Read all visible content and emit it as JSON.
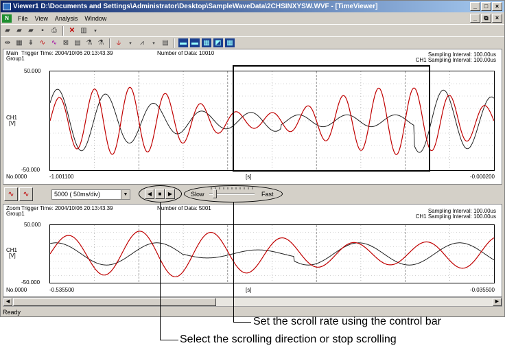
{
  "window": {
    "title": "Viewer1 D:\\Documents and Settings\\Administrator\\Desktop\\SampleWaveData\\2CHSINXYSW.WVF - [TimeViewer]",
    "minimize": "_",
    "maximize": "□",
    "close": "×",
    "restore": "⧉"
  },
  "menu": [
    "File",
    "View",
    "Analysis",
    "Window"
  ],
  "main_pane": {
    "trigger_label": "Main",
    "trigger_time": "Trigger Time: 2004/10/06 20:13:43.39",
    "group": "Group1",
    "number_of_data": "Number of Data: 10010",
    "sampling_interval": "Sampling Interval:  100.00us",
    "ch1_sampling_interval": "CH1 Sampling Interval:  100.00us",
    "y_max": "50.000",
    "y_min": "-50.000",
    "channel": "CH1",
    "unit": "[V]",
    "no": "No.0000",
    "x_start": "-1.001100",
    "x_unit": "[s]",
    "x_end": "-0.000200"
  },
  "control_bar": {
    "div_value": "5000   ( 50ms/div)",
    "slow_label": "Slow",
    "fast_label": "Fast",
    "rate_fraction": 0.08
  },
  "zoom_pane": {
    "trigger_label": "Zoom",
    "trigger_time": "Trigger Time: 2004/10/06 20:13:43.39",
    "group": "Group1",
    "number_of_data": "Number of Data: 5001",
    "sampling_interval": "Sampling Interval:  100.00us",
    "ch1_sampling_interval": "CH1 Sampling Interval:  100.00us",
    "y_max": "50.000",
    "y_min": "-50.000",
    "channel": "CH1",
    "unit": "[V]",
    "no": "No.0000",
    "x_start": "-0.535500",
    "x_unit": "[s]",
    "x_end": "-0.035500"
  },
  "status": "Ready",
  "annotations": {
    "scroll_rate": "Set the scroll rate using the control bar",
    "scroll_direction": "Select the scrolling direction or stop scrolling"
  },
  "colors": {
    "wave_red": "#c00000",
    "wave_dark": "#202020",
    "title_start": "#0a246a",
    "title_end": "#a6caf0"
  }
}
